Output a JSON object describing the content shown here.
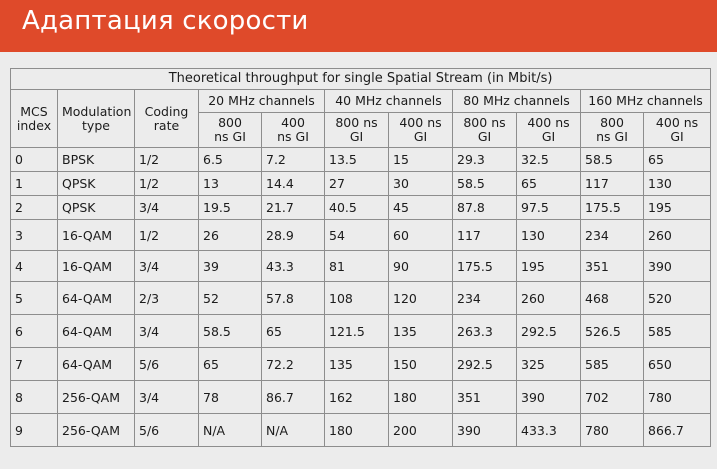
{
  "slide": {
    "title": "Адаптация скорости",
    "accent_color": "#df4a2a"
  },
  "table": {
    "caption": "Theoretical throughput for single Spatial Stream (in Mbit/s)",
    "headers": {
      "mcs_index": "MCS index",
      "modulation_type": "Modulation type",
      "coding_rate": "Coding rate",
      "channel_groups": [
        "20 MHz channels",
        "40 MHz channels",
        "80 MHz channels",
        "160 MHz channels"
      ],
      "gi": [
        "800 ns GI",
        "400 ns GI"
      ]
    },
    "rows": [
      [
        "0",
        "BPSK",
        "1/2",
        "6.5",
        "7.2",
        "13.5",
        "15",
        "29.3",
        "32.5",
        "58.5",
        "65"
      ],
      [
        "1",
        "QPSK",
        "1/2",
        "13",
        "14.4",
        "27",
        "30",
        "58.5",
        "65",
        "117",
        "130"
      ],
      [
        "2",
        "QPSK",
        "3/4",
        "19.5",
        "21.7",
        "40.5",
        "45",
        "87.8",
        "97.5",
        "175.5",
        "195"
      ],
      [
        "3",
        "16-QAM",
        "1/2",
        "26",
        "28.9",
        "54",
        "60",
        "117",
        "130",
        "234",
        "260"
      ],
      [
        "4",
        "16-QAM",
        "3/4",
        "39",
        "43.3",
        "81",
        "90",
        "175.5",
        "195",
        "351",
        "390"
      ],
      [
        "5",
        "64-QAM",
        "2/3",
        "52",
        "57.8",
        "108",
        "120",
        "234",
        "260",
        "468",
        "520"
      ],
      [
        "6",
        "64-QAM",
        "3/4",
        "58.5",
        "65",
        "121.5",
        "135",
        "263.3",
        "292.5",
        "526.5",
        "585"
      ],
      [
        "7",
        "64-QAM",
        "5/6",
        "65",
        "72.2",
        "135",
        "150",
        "292.5",
        "325",
        "585",
        "650"
      ],
      [
        "8",
        "256-QAM",
        "3/4",
        "78",
        "86.7",
        "162",
        "180",
        "351",
        "390",
        "702",
        "780"
      ],
      [
        "9",
        "256-QAM",
        "5/6",
        "N/A",
        "N/A",
        "180",
        "200",
        "390",
        "433.3",
        "780",
        "866.7"
      ]
    ]
  }
}
